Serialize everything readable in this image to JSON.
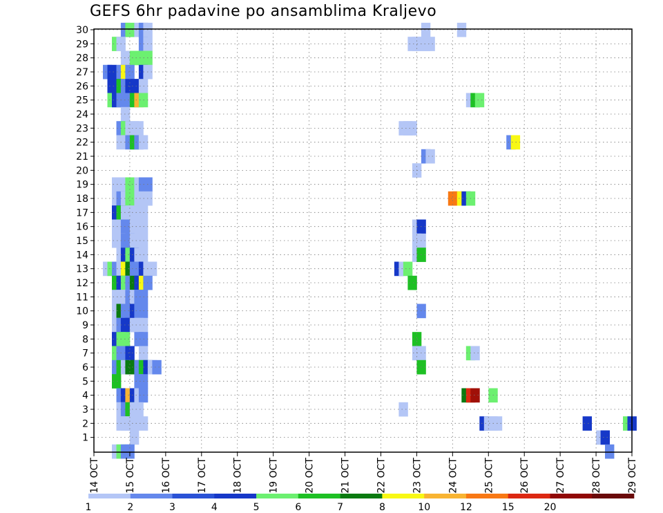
{
  "chart_data": {
    "type": "heatmap",
    "title": "GEFS 6hr padavine po ansamblima Kraljevo",
    "x_tick_labels": [
      "14 OCT",
      "15 OCT",
      "16 OCT",
      "17 OCT",
      "18 OCT",
      "19 OCT",
      "20 OCT",
      "21 OCT",
      "22 OCT",
      "23 OCT",
      "24 OCT",
      "25 OCT",
      "26 OCT",
      "27 OCT",
      "28 OCT",
      "29 OCT"
    ],
    "y_tick_labels": [
      "1",
      "2",
      "3",
      "4",
      "5",
      "6",
      "7",
      "8",
      "9",
      "10",
      "11",
      "12",
      "13",
      "14",
      "15",
      "16",
      "17",
      "18",
      "19",
      "20",
      "21",
      "22",
      "23",
      "24",
      "25",
      "26",
      "27",
      "28",
      "29",
      "30"
    ],
    "xlim_days": [
      14,
      29
    ],
    "ylim": [
      0,
      30
    ],
    "grid": true,
    "legend": {
      "placement": "bottom",
      "labels": [
        "1",
        "2",
        "3",
        "4",
        "5",
        "6",
        "7",
        "8",
        "10",
        "12",
        "15",
        "20"
      ],
      "colors": [
        "#b4c6f6",
        "#6488ec",
        "#2a52d6",
        "#1638c8",
        "#6cf070",
        "#1ec024",
        "#0a7a10",
        "#f8f814",
        "#f8b432",
        "#f87814",
        "#dc2812",
        "#900806",
        "#6a0a0a"
      ]
    },
    "color_levels": {
      "lb": "#b4c6f6",
      "mb": "#6488ec",
      "db": "#1638c8",
      "lg": "#6cf070",
      "mg": "#1ec024",
      "dg": "#0a7a10",
      "y": "#f8f814",
      "or": "#f8b432",
      "do": "#f87814",
      "r": "#dc2812",
      "dr": "#a01008"
    },
    "cells": [
      [
        30,
        14.75,
        "mb"
      ],
      [
        30,
        14.875,
        "lg"
      ],
      [
        30,
        15.125,
        "lb"
      ],
      [
        30,
        15.25,
        "mb"
      ],
      [
        30,
        15.375,
        "lb"
      ],
      [
        30,
        23.125,
        "lb"
      ],
      [
        30,
        24.125,
        "lb"
      ],
      [
        29,
        14.5,
        "lg"
      ],
      [
        29,
        14.625,
        "lb"
      ],
      [
        29,
        15.25,
        "mb"
      ],
      [
        29,
        15.375,
        "lb"
      ],
      [
        29,
        22.75,
        "lb"
      ],
      [
        29,
        22.875,
        "lb"
      ],
      [
        29,
        23.0,
        "lb"
      ],
      [
        29,
        23.125,
        "lb"
      ],
      [
        29,
        23.25,
        "lb"
      ],
      [
        28,
        14.75,
        "lb"
      ],
      [
        28,
        15.0,
        "lg"
      ],
      [
        28,
        15.125,
        "lg"
      ],
      [
        28,
        15.375,
        "lg"
      ],
      [
        27,
        14.25,
        "mb"
      ],
      [
        27,
        14.375,
        "db"
      ],
      [
        27,
        14.625,
        "mb"
      ],
      [
        27,
        14.75,
        "y"
      ],
      [
        27,
        14.875,
        "mb"
      ],
      [
        27,
        15.25,
        "db"
      ],
      [
        27,
        15.375,
        "lb"
      ],
      [
        26,
        14.375,
        "db"
      ],
      [
        26,
        14.5,
        "db"
      ],
      [
        26,
        14.625,
        "mg"
      ],
      [
        26,
        14.75,
        "mb"
      ],
      [
        26,
        14.875,
        "db"
      ],
      [
        26,
        15.0,
        "db"
      ],
      [
        26,
        15.125,
        "db"
      ],
      [
        26,
        15.25,
        "lb"
      ],
      [
        25,
        14.375,
        "lg"
      ],
      [
        25,
        14.5,
        "db"
      ],
      [
        25,
        14.625,
        "mb"
      ],
      [
        25,
        14.75,
        "mb"
      ],
      [
        25,
        15.0,
        "mg"
      ],
      [
        25,
        15.125,
        "or"
      ],
      [
        25,
        15.25,
        "lg"
      ],
      [
        25,
        24.375,
        "lb"
      ],
      [
        25,
        24.5,
        "mg"
      ],
      [
        25,
        24.625,
        "lg"
      ],
      [
        24,
        14.75,
        "lb"
      ],
      [
        23,
        14.625,
        "mb"
      ],
      [
        23,
        14.75,
        "lg"
      ],
      [
        23,
        14.875,
        "lb"
      ],
      [
        23,
        15.0,
        "lb"
      ],
      [
        23,
        15.125,
        "lb"
      ],
      [
        23,
        22.5,
        "lb"
      ],
      [
        23,
        22.625,
        "lb"
      ],
      [
        23,
        22.75,
        "lb"
      ],
      [
        22,
        14.625,
        "lb"
      ],
      [
        22,
        14.875,
        "mb"
      ],
      [
        22,
        15.0,
        "mg"
      ],
      [
        22,
        15.125,
        "mb"
      ],
      [
        22,
        15.25,
        "lb"
      ],
      [
        22,
        25.5,
        "mb"
      ],
      [
        22,
        25.625,
        "y"
      ],
      [
        21,
        23.125,
        "mb"
      ],
      [
        21,
        23.25,
        "lb"
      ],
      [
        20,
        22.875,
        "lb"
      ],
      [
        19,
        14.5,
        "lb"
      ],
      [
        19,
        14.625,
        "lb"
      ],
      [
        19,
        14.75,
        "lb"
      ],
      [
        19,
        14.875,
        "lg"
      ],
      [
        19,
        15.0,
        "lg"
      ],
      [
        19,
        15.125,
        "lb"
      ],
      [
        19,
        15.25,
        "mb"
      ],
      [
        19,
        15.375,
        "mb"
      ],
      [
        18,
        14.5,
        "lb"
      ],
      [
        18,
        14.625,
        "mb"
      ],
      [
        18,
        14.75,
        "lb"
      ],
      [
        18,
        14.875,
        "lg"
      ],
      [
        18,
        15.125,
        "lb"
      ],
      [
        18,
        15.375,
        "lb"
      ],
      [
        18,
        23.875,
        "do"
      ],
      [
        18,
        24.0,
        "do"
      ],
      [
        18,
        24.125,
        "y"
      ],
      [
        18,
        24.25,
        "db"
      ],
      [
        18,
        24.375,
        "lg"
      ],
      [
        17,
        14.5,
        "db"
      ],
      [
        17,
        14.625,
        "mg"
      ],
      [
        17,
        14.75,
        "lb"
      ],
      [
        17,
        15.0,
        "lb"
      ],
      [
        17,
        15.125,
        "lb"
      ],
      [
        17,
        15.25,
        "lb"
      ],
      [
        16,
        14.5,
        "lb"
      ],
      [
        16,
        14.625,
        "lb"
      ],
      [
        16,
        14.75,
        "mb"
      ],
      [
        16,
        14.875,
        "mb"
      ],
      [
        16,
        15.0,
        "lb"
      ],
      [
        16,
        15.125,
        "lb"
      ],
      [
        16,
        15.25,
        "lb"
      ],
      [
        16,
        22.875,
        "lb"
      ],
      [
        16,
        23.0,
        "db"
      ],
      [
        15,
        14.5,
        "lb"
      ],
      [
        15,
        14.625,
        "lb"
      ],
      [
        15,
        14.75,
        "mb"
      ],
      [
        15,
        14.875,
        "mb"
      ],
      [
        15,
        15.0,
        "lb"
      ],
      [
        15,
        15.125,
        "lb"
      ],
      [
        15,
        15.25,
        "lb"
      ],
      [
        15,
        22.875,
        "lb"
      ],
      [
        15,
        23.0,
        "lb"
      ],
      [
        14,
        14.625,
        "lb"
      ],
      [
        14,
        14.75,
        "db"
      ],
      [
        14,
        14.875,
        "lg"
      ],
      [
        14,
        15.0,
        "db"
      ],
      [
        14,
        15.125,
        "lb"
      ],
      [
        14,
        15.25,
        "lb"
      ],
      [
        14,
        22.875,
        "lb"
      ],
      [
        14,
        23.0,
        "mg"
      ],
      [
        13,
        14.25,
        "lb"
      ],
      [
        13,
        14.375,
        "lg"
      ],
      [
        13,
        14.5,
        "mb"
      ],
      [
        13,
        14.625,
        "lb"
      ],
      [
        13,
        14.75,
        "y"
      ],
      [
        13,
        14.875,
        "dg"
      ],
      [
        13,
        15.0,
        "mb"
      ],
      [
        13,
        15.125,
        "mb"
      ],
      [
        13,
        15.25,
        "db"
      ],
      [
        13,
        15.375,
        "lb"
      ],
      [
        13,
        15.5,
        "lb"
      ],
      [
        13,
        22.375,
        "db"
      ],
      [
        13,
        22.5,
        "lb"
      ],
      [
        13,
        22.625,
        "lg"
      ],
      [
        12,
        14.5,
        "mg"
      ],
      [
        12,
        14.625,
        "db"
      ],
      [
        12,
        14.75,
        "lg"
      ],
      [
        12,
        14.875,
        "mb"
      ],
      [
        12,
        15.0,
        "dg"
      ],
      [
        12,
        15.125,
        "db"
      ],
      [
        12,
        15.25,
        "y"
      ],
      [
        12,
        15.375,
        "mb"
      ],
      [
        12,
        22.75,
        "mg"
      ],
      [
        11,
        14.5,
        "lb"
      ],
      [
        11,
        14.625,
        "lb"
      ],
      [
        11,
        14.75,
        "lb"
      ],
      [
        11,
        14.875,
        "mb"
      ],
      [
        11,
        15.0,
        "lb"
      ],
      [
        11,
        15.125,
        "mb"
      ],
      [
        11,
        15.25,
        "mb"
      ],
      [
        10,
        14.5,
        "lb"
      ],
      [
        10,
        14.625,
        "dg"
      ],
      [
        10,
        14.75,
        "mb"
      ],
      [
        10,
        14.875,
        "mb"
      ],
      [
        10,
        15.0,
        "db"
      ],
      [
        10,
        15.125,
        "mb"
      ],
      [
        10,
        15.25,
        "mb"
      ],
      [
        10,
        23.0,
        "mb"
      ],
      [
        9,
        14.5,
        "lb"
      ],
      [
        9,
        14.625,
        "mb"
      ],
      [
        9,
        14.75,
        "db"
      ],
      [
        9,
        14.875,
        "db"
      ],
      [
        9,
        15.0,
        "lb"
      ],
      [
        9,
        15.125,
        "lb"
      ],
      [
        9,
        15.25,
        "lb"
      ],
      [
        8,
        14.5,
        "db"
      ],
      [
        8,
        14.625,
        "lg"
      ],
      [
        8,
        14.75,
        "lg"
      ],
      [
        8,
        15.125,
        "mb"
      ],
      [
        8,
        15.25,
        "mb"
      ],
      [
        8,
        22.875,
        "mg"
      ],
      [
        7,
        14.5,
        "lg"
      ],
      [
        7,
        14.625,
        "mb"
      ],
      [
        7,
        14.875,
        "db"
      ],
      [
        7,
        15.25,
        "lb"
      ],
      [
        7,
        22.875,
        "lb"
      ],
      [
        7,
        23.0,
        "lb"
      ],
      [
        7,
        24.375,
        "lg"
      ],
      [
        7,
        24.5,
        "lb"
      ],
      [
        6,
        14.5,
        "mb"
      ],
      [
        6,
        14.625,
        "mg"
      ],
      [
        6,
        14.75,
        "lb"
      ],
      [
        6,
        14.875,
        "dg"
      ],
      [
        6,
        15.0,
        "dg"
      ],
      [
        6,
        15.125,
        "mb"
      ],
      [
        6,
        15.25,
        "mg"
      ],
      [
        6,
        15.375,
        "db"
      ],
      [
        6,
        15.5,
        "lb"
      ],
      [
        6,
        15.625,
        "mb"
      ],
      [
        6,
        23.0,
        "mg"
      ],
      [
        5,
        14.5,
        "mg"
      ],
      [
        5,
        15.125,
        "mb"
      ],
      [
        5,
        15.25,
        "mb"
      ],
      [
        4,
        14.625,
        "mb"
      ],
      [
        4,
        14.75,
        "db"
      ],
      [
        4,
        14.875,
        "or"
      ],
      [
        4,
        15.0,
        "db"
      ],
      [
        4,
        15.125,
        "lb"
      ],
      [
        4,
        15.25,
        "mb"
      ],
      [
        4,
        24.25,
        "dg"
      ],
      [
        4,
        24.375,
        "r"
      ],
      [
        4,
        24.5,
        "dr"
      ],
      [
        4,
        25.0,
        "lg"
      ],
      [
        3,
        14.625,
        "lb"
      ],
      [
        3,
        14.75,
        "mb"
      ],
      [
        3,
        14.875,
        "mg"
      ],
      [
        3,
        15.0,
        "lb"
      ],
      [
        3,
        15.125,
        "lb"
      ],
      [
        3,
        22.5,
        "lb"
      ],
      [
        2,
        14.625,
        "lb"
      ],
      [
        2,
        14.75,
        "lb"
      ],
      [
        2,
        14.875,
        "lb"
      ],
      [
        2,
        15.0,
        "lb"
      ],
      [
        2,
        15.25,
        "lb"
      ],
      [
        2,
        24.75,
        "db"
      ],
      [
        2,
        24.875,
        "lb"
      ],
      [
        2,
        25.0,
        "lb"
      ],
      [
        2,
        25.125,
        "lb"
      ],
      [
        2,
        27.625,
        "db"
      ],
      [
        2,
        28.75,
        "lg"
      ],
      [
        2,
        28.875,
        "db"
      ],
      [
        1,
        15.0,
        "lb"
      ],
      [
        1,
        28.0,
        "lb"
      ],
      [
        1,
        28.125,
        "db"
      ],
      [
        0,
        14.5,
        "lb"
      ],
      [
        0,
        14.625,
        "lg"
      ],
      [
        0,
        14.75,
        "mb"
      ],
      [
        0,
        14.875,
        "mb"
      ],
      [
        0,
        28.25,
        "mb"
      ]
    ]
  }
}
